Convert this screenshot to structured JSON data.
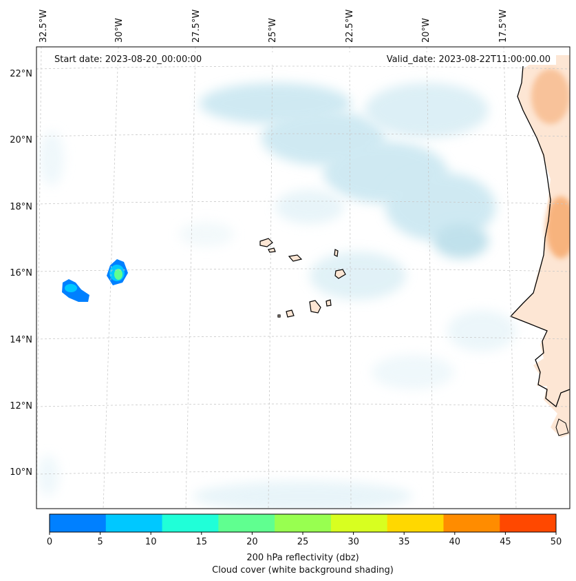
{
  "header": {
    "start_date": "Start date: 2023-08-20_00:00:00",
    "valid_date": "Valid_date: 2023-08-22T11:00:00.00"
  },
  "longitude_labels": [
    "32.5°W",
    "30°W",
    "27.5°W",
    "25°W",
    "22.5°W",
    "20°W",
    "17.5°W"
  ],
  "latitude_labels": [
    "22°N",
    "20°N",
    "18°N",
    "16°N",
    "14°N",
    "12°N",
    "10°N"
  ],
  "colorbar": {
    "ticks": [
      "0",
      "5",
      "10",
      "15",
      "20",
      "25",
      "30",
      "35",
      "40",
      "45",
      "50"
    ],
    "colors": [
      "#0080ff",
      "#00c8ff",
      "#20ffd8",
      "#60ff90",
      "#98ff50",
      "#d8ff20",
      "#ffd800",
      "#ff8c00",
      "#ff4800"
    ],
    "label_line1": "200 hPa reflectivity (dbz)",
    "label_line2": "Cloud cover (white background shading)"
  },
  "colors": {
    "cloud": "#a8d8e8",
    "land_warm": "#f6a260",
    "land_light": "#fde6d4",
    "gridline": "#c8c8c8"
  }
}
